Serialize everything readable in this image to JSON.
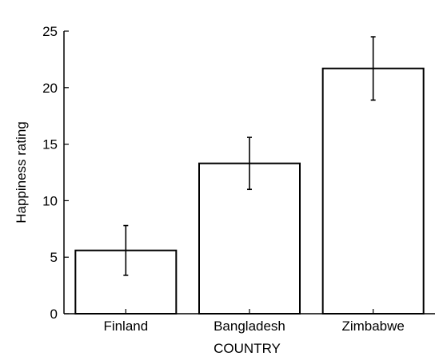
{
  "chart_data": {
    "type": "bar",
    "categories": [
      "Finland",
      "Bangladesh",
      "Zimbabwe"
    ],
    "values": [
      5.6,
      13.3,
      21.7
    ],
    "error_low": [
      3.4,
      11.0,
      18.9
    ],
    "error_high": [
      7.8,
      15.6,
      24.5
    ],
    "xlabel": "COUNTRY",
    "ylabel": "Happiness rating",
    "ylim": [
      0,
      25
    ],
    "yticks": [
      0,
      5,
      10,
      15,
      20,
      25
    ],
    "grid": false,
    "colors": {
      "bar_fill": "#ffffff",
      "bar_stroke": "#000000",
      "axis": "#000000"
    }
  }
}
